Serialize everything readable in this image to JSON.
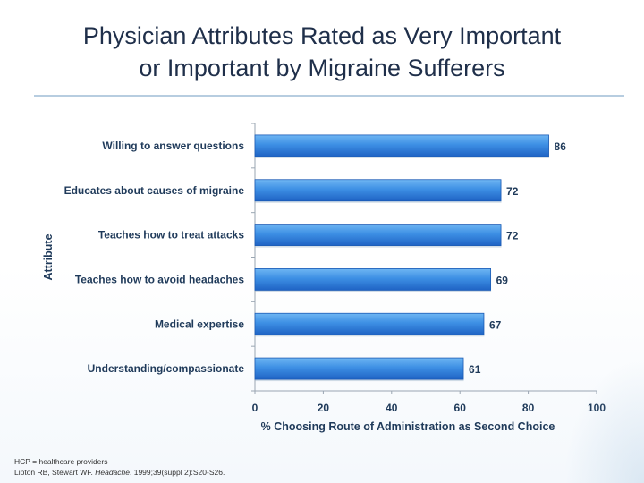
{
  "slide": {
    "title_line1": "Physician Attributes Rated as Very Important",
    "title_line2": "or Important by Migraine Sufferers"
  },
  "footnote": {
    "line1": "HCP = healthcare providers",
    "line2": "Lipton RB, Stewart WF. Headache. 1999;39(suppl 2):S20-S26."
  },
  "colors": {
    "bar_light": "#5aa8ef",
    "bar_dark": "#1f6fcf",
    "text": "#1f3a5a",
    "axis": "#9aa6b2"
  },
  "chart_data": {
    "type": "bar",
    "orientation": "horizontal",
    "categories": [
      "Willing to answer questions",
      "Educates about causes of migraine",
      "Teaches how to treat attacks",
      "Teaches how to avoid headaches",
      "Medical expertise",
      "Understanding/compassionate"
    ],
    "values": [
      86,
      72,
      72,
      69,
      67,
      61
    ],
    "xlabel": "% Choosing Route of Administration as Second Choice",
    "ylabel": "Attribute",
    "xlim": [
      0,
      100
    ],
    "xticks": [
      0,
      20,
      40,
      60,
      80,
      100
    ],
    "grid": false,
    "data_labels": true
  }
}
